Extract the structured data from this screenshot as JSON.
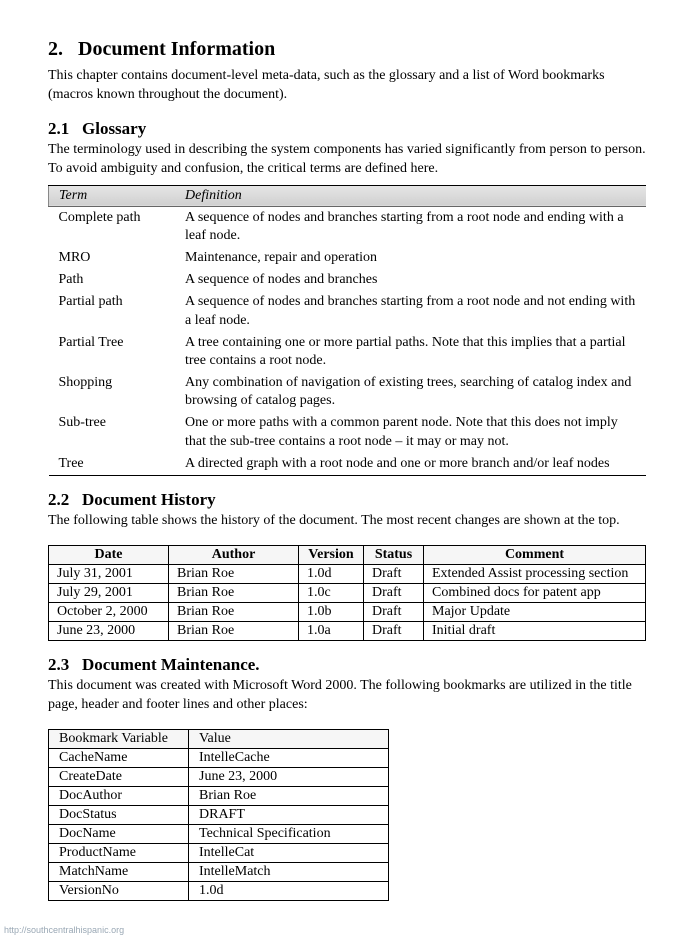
{
  "section": {
    "number": "2.",
    "title": "Document Information",
    "intro": "This chapter contains document-level meta-data, such as the glossary and a list of Word bookmarks (macros known throughout the document)."
  },
  "glossary": {
    "heading_num": "2.1",
    "heading": "Glossary",
    "intro": "The terminology used in describing the system components has varied significantly from person to person.  To avoid ambiguity and confusion, the critical terms are defined here.",
    "col_term": "Term",
    "col_def": "Definition",
    "rows": [
      {
        "term": "Complete path",
        "def": "A sequence of nodes and branches starting from a root node and ending with a leaf node."
      },
      {
        "term": "MRO",
        "def": "Maintenance, repair and operation"
      },
      {
        "term": "Path",
        "def": "A sequence of nodes and branches"
      },
      {
        "term": "Partial path",
        "def": "A sequence of nodes and branches starting from a root node and not ending with a leaf node."
      },
      {
        "term": "Partial Tree",
        "def": "A tree containing one or more partial paths.  Note that this implies that a partial tree contains a root node."
      },
      {
        "term": "Shopping",
        "def": "Any combination of navigation of existing trees, searching of catalog index and browsing of catalog pages."
      },
      {
        "term": "Sub-tree",
        "def": "One or more paths with a common parent node.  Note that this does not imply that the sub-tree contains a root node – it may or may not."
      },
      {
        "term": "Tree",
        "def": "A directed graph with a root node and one or more branch and/or leaf nodes"
      }
    ]
  },
  "history": {
    "heading_num": "2.2",
    "heading": "Document History",
    "intro": "The following table shows the history of the document.  The most recent changes are shown at the top.",
    "cols": {
      "date": "Date",
      "author": "Author",
      "version": "Version",
      "status": "Status",
      "comment": "Comment"
    },
    "rows": [
      {
        "date": "July 31, 2001",
        "author": "Brian Roe",
        "version": "1.0d",
        "status": "Draft",
        "comment": "Extended Assist processing section"
      },
      {
        "date": "July 29, 2001",
        "author": "Brian Roe",
        "version": "1.0c",
        "status": "Draft",
        "comment": "Combined docs for patent app"
      },
      {
        "date": "October 2, 2000",
        "author": "Brian Roe",
        "version": "1.0b",
        "status": "Draft",
        "comment": "Major Update"
      },
      {
        "date": "June 23, 2000",
        "author": "Brian Roe",
        "version": "1.0a",
        "status": "Draft",
        "comment": "Initial draft"
      }
    ]
  },
  "maintenance": {
    "heading_num": "2.3",
    "heading": "Document Maintenance.",
    "intro": "This document was created with Microsoft Word 2000. The following bookmarks are utilized in the title page, header and footer lines and other places:",
    "cols": {
      "var": "Bookmark Variable",
      "val": "Value"
    },
    "rows": [
      {
        "var": "CacheName",
        "val": "IntelleCache"
      },
      {
        "var": "CreateDate",
        "val": "June 23, 2000"
      },
      {
        "var": "DocAuthor",
        "val": "Brian Roe"
      },
      {
        "var": "DocStatus",
        "val": "DRAFT"
      },
      {
        "var": "DocName",
        "val": "Technical Specification"
      },
      {
        "var": "ProductName",
        "val": "IntelleCat"
      },
      {
        "var": "MatchName",
        "val": "IntelleMatch"
      },
      {
        "var": "VersionNo",
        "val": "1.0d"
      }
    ]
  },
  "footer_url": "http://southcentralhispanic.org"
}
